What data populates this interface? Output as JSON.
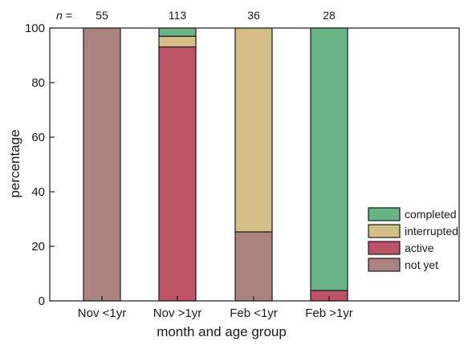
{
  "chart_data": {
    "type": "bar",
    "stacked": true,
    "title": "",
    "xlabel": "month and age group",
    "ylabel": "percentage",
    "ylim": [
      0,
      100
    ],
    "yticks": [
      0,
      20,
      40,
      60,
      80,
      100
    ],
    "grid": false,
    "legend": {
      "placement": "bottom-right",
      "order": [
        "completed",
        "interrupted",
        "active",
        "not yet"
      ]
    },
    "n_label": "n =",
    "categories": [
      "Nov <1yr",
      "Nov >1yr",
      "Feb <1yr",
      "Feb >1yr"
    ],
    "n_values": [
      "55",
      "113",
      "36",
      "28"
    ],
    "series": [
      {
        "name": "not yet",
        "color": "#ad8382",
        "values": [
          100,
          0,
          25.3,
          0
        ]
      },
      {
        "name": "active",
        "color": "#bb5266",
        "values": [
          0,
          93.1,
          0,
          3.8
        ]
      },
      {
        "name": "interrupted",
        "color": "#d5bf86",
        "values": [
          0,
          3.9,
          74.7,
          0
        ]
      },
      {
        "name": "completed",
        "color": "#6ab385",
        "values": [
          0,
          3.0,
          0,
          96.2
        ]
      }
    ]
  }
}
